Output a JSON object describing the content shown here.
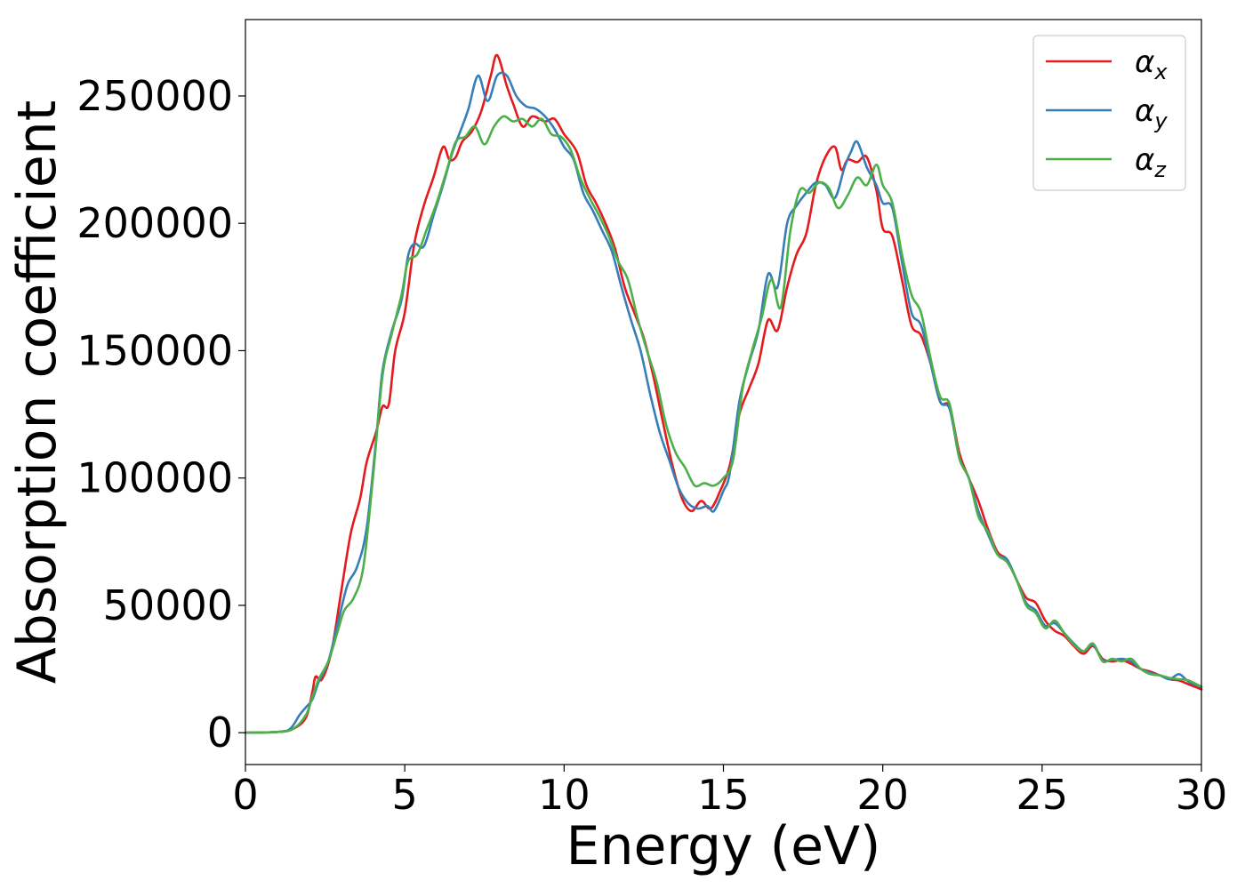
{
  "chart_data": {
    "type": "line",
    "title": "",
    "xlabel": "Energy (eV)",
    "ylabel": "Absorption coefficient",
    "xlim": [
      0,
      30
    ],
    "ylim": [
      -12500,
      280000
    ],
    "xticks": [
      0,
      5,
      10,
      15,
      20,
      25,
      30
    ],
    "xtick_labels": [
      "0",
      "5",
      "10",
      "15",
      "20",
      "25",
      "30"
    ],
    "yticks": [
      0,
      50000,
      100000,
      150000,
      200000,
      250000
    ],
    "ytick_labels": [
      "0",
      "50000",
      "100000",
      "150000",
      "200000",
      "250000"
    ],
    "grid": false,
    "legend_position": "top-right",
    "series": [
      {
        "name": "α",
        "subscript": "x",
        "color": "#e41a1c",
        "points": [
          [
            0,
            0
          ],
          [
            1.0,
            300
          ],
          [
            1.5,
            1500
          ],
          [
            1.9,
            6000
          ],
          [
            2.1,
            16000
          ],
          [
            2.2,
            22000
          ],
          [
            2.4,
            21000
          ],
          [
            2.7,
            32000
          ],
          [
            3.0,
            55000
          ],
          [
            3.3,
            78000
          ],
          [
            3.6,
            92000
          ],
          [
            3.8,
            106000
          ],
          [
            4.1,
            118000
          ],
          [
            4.3,
            128000
          ],
          [
            4.5,
            129000
          ],
          [
            4.7,
            150000
          ],
          [
            5.0,
            165000
          ],
          [
            5.3,
            192000
          ],
          [
            5.6,
            207000
          ],
          [
            5.9,
            218000
          ],
          [
            6.2,
            230000
          ],
          [
            6.4,
            225000
          ],
          [
            6.6,
            226000
          ],
          [
            6.8,
            232000
          ],
          [
            7.1,
            236000
          ],
          [
            7.4,
            244000
          ],
          [
            7.7,
            258000
          ],
          [
            7.9,
            266000
          ],
          [
            8.2,
            254000
          ],
          [
            8.4,
            247000
          ],
          [
            8.7,
            238000
          ],
          [
            9.0,
            242000
          ],
          [
            9.4,
            240000
          ],
          [
            9.7,
            241000
          ],
          [
            10.0,
            235000
          ],
          [
            10.4,
            228000
          ],
          [
            10.7,
            215000
          ],
          [
            11.0,
            208000
          ],
          [
            11.3,
            200000
          ],
          [
            11.6,
            190000
          ],
          [
            11.9,
            175000
          ],
          [
            12.2,
            165000
          ],
          [
            12.5,
            155000
          ],
          [
            12.8,
            140000
          ],
          [
            13.1,
            122000
          ],
          [
            13.4,
            105000
          ],
          [
            13.7,
            92000
          ],
          [
            14.0,
            87000
          ],
          [
            14.3,
            91000
          ],
          [
            14.6,
            88000
          ],
          [
            14.9,
            95000
          ],
          [
            15.2,
            105000
          ],
          [
            15.5,
            125000
          ],
          [
            15.8,
            135000
          ],
          [
            16.1,
            145000
          ],
          [
            16.4,
            162000
          ],
          [
            16.7,
            158000
          ],
          [
            17.0,
            175000
          ],
          [
            17.3,
            188000
          ],
          [
            17.6,
            196000
          ],
          [
            17.9,
            215000
          ],
          [
            18.2,
            226000
          ],
          [
            18.5,
            230000
          ],
          [
            18.7,
            221000
          ],
          [
            18.9,
            225000
          ],
          [
            19.2,
            224000
          ],
          [
            19.5,
            226000
          ],
          [
            19.8,
            213000
          ],
          [
            20.0,
            198000
          ],
          [
            20.3,
            195000
          ],
          [
            20.6,
            178000
          ],
          [
            20.9,
            160000
          ],
          [
            21.2,
            156000
          ],
          [
            21.5,
            145000
          ],
          [
            21.8,
            130000
          ],
          [
            22.1,
            128000
          ],
          [
            22.4,
            110000
          ],
          [
            22.7,
            100000
          ],
          [
            23.0,
            91000
          ],
          [
            23.3,
            80000
          ],
          [
            23.6,
            71000
          ],
          [
            23.9,
            68000
          ],
          [
            24.2,
            60000
          ],
          [
            24.5,
            53000
          ],
          [
            24.8,
            51000
          ],
          [
            25.1,
            44000
          ],
          [
            25.4,
            40000
          ],
          [
            25.7,
            38000
          ],
          [
            26.0,
            34000
          ],
          [
            26.3,
            31000
          ],
          [
            26.6,
            34000
          ],
          [
            26.9,
            29000
          ],
          [
            27.2,
            28000
          ],
          [
            27.5,
            28500
          ],
          [
            27.8,
            27000
          ],
          [
            28.1,
            25000
          ],
          [
            28.4,
            24000
          ],
          [
            28.7,
            22500
          ],
          [
            29.0,
            21000
          ],
          [
            29.3,
            20500
          ],
          [
            29.6,
            19000
          ],
          [
            30.0,
            17000
          ]
        ]
      },
      {
        "name": "α",
        "subscript": "y",
        "color": "#377eb8",
        "points": [
          [
            0,
            0
          ],
          [
            1.0,
            300
          ],
          [
            1.4,
            1500
          ],
          [
            1.7,
            7000
          ],
          [
            1.9,
            10000
          ],
          [
            2.1,
            13000
          ],
          [
            2.3,
            20000
          ],
          [
            2.6,
            28000
          ],
          [
            2.9,
            43000
          ],
          [
            3.2,
            58000
          ],
          [
            3.5,
            65000
          ],
          [
            3.8,
            80000
          ],
          [
            4.1,
            115000
          ],
          [
            4.3,
            142000
          ],
          [
            4.6,
            158000
          ],
          [
            4.9,
            170000
          ],
          [
            5.1,
            187000
          ],
          [
            5.3,
            192000
          ],
          [
            5.6,
            191000
          ],
          [
            5.9,
            203000
          ],
          [
            6.2,
            215000
          ],
          [
            6.5,
            228000
          ],
          [
            6.8,
            238000
          ],
          [
            7.0,
            245000
          ],
          [
            7.3,
            258000
          ],
          [
            7.6,
            248000
          ],
          [
            7.9,
            258000
          ],
          [
            8.2,
            258000
          ],
          [
            8.5,
            250000
          ],
          [
            8.8,
            246000
          ],
          [
            9.1,
            245000
          ],
          [
            9.4,
            242000
          ],
          [
            9.7,
            237000
          ],
          [
            10.0,
            230000
          ],
          [
            10.3,
            225000
          ],
          [
            10.6,
            212000
          ],
          [
            10.9,
            205000
          ],
          [
            11.2,
            197000
          ],
          [
            11.5,
            189000
          ],
          [
            11.8,
            175000
          ],
          [
            12.1,
            162000
          ],
          [
            12.4,
            150000
          ],
          [
            12.7,
            133000
          ],
          [
            13.0,
            118000
          ],
          [
            13.3,
            107000
          ],
          [
            13.6,
            96000
          ],
          [
            13.9,
            90000
          ],
          [
            14.2,
            88000
          ],
          [
            14.5,
            89000
          ],
          [
            14.7,
            87000
          ],
          [
            15.0,
            95000
          ],
          [
            15.2,
            102000
          ],
          [
            15.5,
            130000
          ],
          [
            15.8,
            145000
          ],
          [
            16.1,
            158000
          ],
          [
            16.4,
            180000
          ],
          [
            16.7,
            175000
          ],
          [
            17.0,
            200000
          ],
          [
            17.3,
            207000
          ],
          [
            17.6,
            212000
          ],
          [
            17.9,
            216000
          ],
          [
            18.2,
            215000
          ],
          [
            18.5,
            210000
          ],
          [
            18.8,
            222000
          ],
          [
            19.0,
            228000
          ],
          [
            19.2,
            232000
          ],
          [
            19.5,
            222000
          ],
          [
            19.8,
            215000
          ],
          [
            20.0,
            208000
          ],
          [
            20.3,
            206000
          ],
          [
            20.6,
            185000
          ],
          [
            20.9,
            165000
          ],
          [
            21.2,
            160000
          ],
          [
            21.5,
            145000
          ],
          [
            21.8,
            130000
          ],
          [
            22.1,
            127000
          ],
          [
            22.4,
            108000
          ],
          [
            22.7,
            100000
          ],
          [
            23.0,
            87000
          ],
          [
            23.3,
            78000
          ],
          [
            23.6,
            70000
          ],
          [
            23.9,
            68000
          ],
          [
            24.2,
            60000
          ],
          [
            24.5,
            51000
          ],
          [
            24.8,
            48000
          ],
          [
            25.1,
            42000
          ],
          [
            25.4,
            43000
          ],
          [
            25.7,
            39000
          ],
          [
            26.0,
            35000
          ],
          [
            26.3,
            32000
          ],
          [
            26.6,
            34500
          ],
          [
            26.9,
            28500
          ],
          [
            27.2,
            28500
          ],
          [
            27.5,
            29000
          ],
          [
            27.8,
            28000
          ],
          [
            28.1,
            25000
          ],
          [
            28.4,
            23500
          ],
          [
            28.7,
            22500
          ],
          [
            29.0,
            21000
          ],
          [
            29.3,
            23000
          ],
          [
            29.6,
            20000
          ],
          [
            30.0,
            18000
          ]
        ]
      },
      {
        "name": "α",
        "subscript": "z",
        "color": "#4daf4a",
        "points": [
          [
            0,
            0
          ],
          [
            1.0,
            300
          ],
          [
            1.5,
            1500
          ],
          [
            1.9,
            7000
          ],
          [
            2.1,
            14000
          ],
          [
            2.3,
            21000
          ],
          [
            2.6,
            28000
          ],
          [
            2.9,
            40000
          ],
          [
            3.1,
            48000
          ],
          [
            3.4,
            53000
          ],
          [
            3.7,
            65000
          ],
          [
            4.0,
            100000
          ],
          [
            4.3,
            140000
          ],
          [
            4.6,
            157000
          ],
          [
            4.9,
            172000
          ],
          [
            5.1,
            185000
          ],
          [
            5.4,
            188000
          ],
          [
            5.7,
            198000
          ],
          [
            6.0,
            208000
          ],
          [
            6.3,
            220000
          ],
          [
            6.6,
            232000
          ],
          [
            6.9,
            234000
          ],
          [
            7.2,
            238000
          ],
          [
            7.5,
            231000
          ],
          [
            7.8,
            238000
          ],
          [
            8.1,
            242000
          ],
          [
            8.4,
            240000
          ],
          [
            8.7,
            241000
          ],
          [
            9.0,
            238000
          ],
          [
            9.3,
            241000
          ],
          [
            9.6,
            235000
          ],
          [
            9.9,
            234000
          ],
          [
            10.2,
            229000
          ],
          [
            10.5,
            218000
          ],
          [
            10.8,
            210000
          ],
          [
            11.1,
            203000
          ],
          [
            11.4,
            195000
          ],
          [
            11.7,
            185000
          ],
          [
            12.0,
            178000
          ],
          [
            12.3,
            163000
          ],
          [
            12.6,
            150000
          ],
          [
            12.9,
            138000
          ],
          [
            13.2,
            121000
          ],
          [
            13.5,
            110000
          ],
          [
            13.8,
            104000
          ],
          [
            14.1,
            97000
          ],
          [
            14.4,
            98000
          ],
          [
            14.7,
            97000
          ],
          [
            15.0,
            100000
          ],
          [
            15.3,
            107000
          ],
          [
            15.6,
            135000
          ],
          [
            15.9,
            150000
          ],
          [
            16.2,
            163000
          ],
          [
            16.5,
            178000
          ],
          [
            16.8,
            167000
          ],
          [
            17.1,
            197000
          ],
          [
            17.4,
            213000
          ],
          [
            17.7,
            212000
          ],
          [
            18.0,
            216000
          ],
          [
            18.3,
            214000
          ],
          [
            18.6,
            206000
          ],
          [
            18.9,
            211000
          ],
          [
            19.2,
            218000
          ],
          [
            19.5,
            215000
          ],
          [
            19.8,
            223000
          ],
          [
            20.0,
            215000
          ],
          [
            20.3,
            208000
          ],
          [
            20.6,
            188000
          ],
          [
            20.9,
            172000
          ],
          [
            21.2,
            165000
          ],
          [
            21.5,
            147000
          ],
          [
            21.8,
            132000
          ],
          [
            22.1,
            129000
          ],
          [
            22.4,
            108000
          ],
          [
            22.7,
            100000
          ],
          [
            23.0,
            85000
          ],
          [
            23.3,
            79000
          ],
          [
            23.6,
            70000
          ],
          [
            23.9,
            67000
          ],
          [
            24.2,
            60000
          ],
          [
            24.5,
            50000
          ],
          [
            24.8,
            47000
          ],
          [
            25.1,
            41000
          ],
          [
            25.4,
            44000
          ],
          [
            25.7,
            39000
          ],
          [
            26.0,
            34500
          ],
          [
            26.3,
            32000
          ],
          [
            26.6,
            35000
          ],
          [
            26.9,
            28000
          ],
          [
            27.2,
            29000
          ],
          [
            27.5,
            28000
          ],
          [
            27.8,
            29000
          ],
          [
            28.1,
            25000
          ],
          [
            28.4,
            23000
          ],
          [
            28.7,
            22500
          ],
          [
            29.0,
            21500
          ],
          [
            29.3,
            21000
          ],
          [
            29.6,
            20500
          ],
          [
            30.0,
            18000
          ]
        ]
      }
    ]
  }
}
